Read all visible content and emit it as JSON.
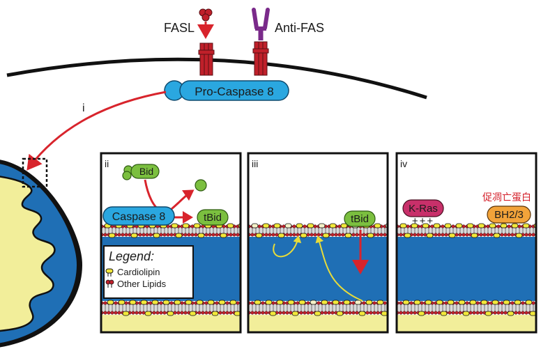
{
  "labels": {
    "fasl": "FASL",
    "anti_fas": "Anti-FAS",
    "pro_caspase": "Pro-Caspase 8",
    "step_i": "i",
    "panel_ii": "ii",
    "panel_iii": "iii",
    "panel_iv": "iv",
    "bid": "Bid",
    "caspase8": "Caspase 8",
    "tbid_ii": "tBid",
    "tbid_iii": "tBid",
    "kras": "K-Ras",
    "charges": "+++",
    "bh": "BH2/3",
    "pro_apoptotic": "促凋亡蛋白"
  },
  "legend": {
    "title": "Legend:",
    "items": [
      {
        "label": "Cardiolipin",
        "swatch": "cardiolipin"
      },
      {
        "label": "Other Lipids",
        "swatch": "other-lipids"
      }
    ]
  },
  "colors": {
    "membrane_blue": "#1f6fb5",
    "receptor_red": "#c0202a",
    "arrow_red": "#d8242c",
    "caspase_blue": "#2aa7e0",
    "bid_green": "#7bbf3f",
    "kras_pink": "#c8306a",
    "bh_orange": "#f2a33a",
    "matrix_yellow": "#f2ee9a",
    "anti_fas_purple": "#7a2a8a"
  }
}
